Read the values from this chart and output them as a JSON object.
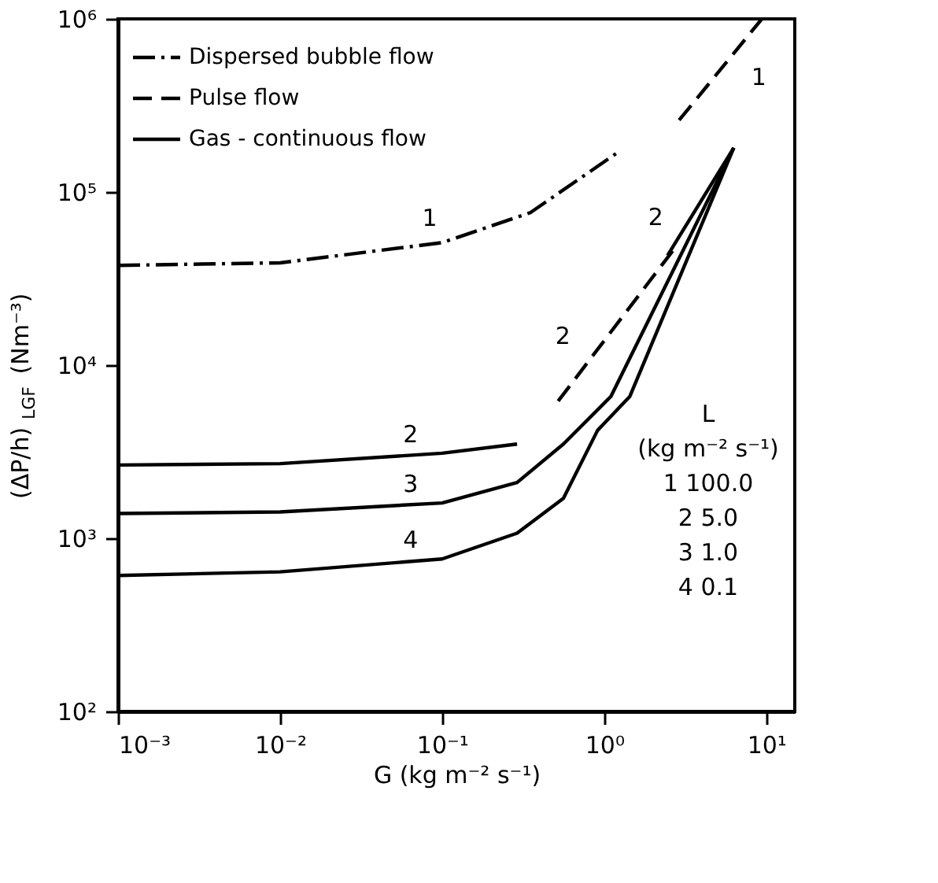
{
  "chart_data": {
    "type": "line",
    "xlabel": "G (kg m⁻² s⁻¹)",
    "ylabel": "(ΔP/h)$_{LGF}$ (Nm⁻³)",
    "log": "xy",
    "legend": "top left",
    "grid": false,
    "xlim": [
      0.001,
      15
    ],
    "ylim": [
      100,
      1000000
    ],
    "xticks": [
      {
        "value": 0.001,
        "label": "10⁻³"
      },
      {
        "value": 0.01,
        "label": "10⁻²"
      },
      {
        "value": 0.1,
        "label": "10⁻¹"
      },
      {
        "value": 1,
        "label": "10⁰"
      },
      {
        "value": 10,
        "label": "10¹"
      }
    ],
    "yticks": [
      {
        "value": 100,
        "label": "10²"
      },
      {
        "value": 1000,
        "label": "10³"
      },
      {
        "value": 10000,
        "label": "10⁴"
      },
      {
        "value": 100000,
        "label": "10⁵"
      },
      {
        "value": 1000000,
        "label": "10⁶"
      }
    ],
    "series": [
      {
        "name": "Dispersed bubble flow",
        "color": "#000000",
        "line_style": "dashdot",
        "x": [
          0.001,
          0.01,
          0.1,
          0.35,
          1.22
        ],
        "values": [
          37700,
          39000,
          51000,
          76000,
          170000
        ]
      },
      {
        "name": "Pulse flow",
        "color": "#000000",
        "line_style": "dashed",
        "x": [
          2.9,
          9.4
        ],
        "values": [
          260000,
          1000000
        ]
      },
      {
        "color": "#000000",
        "line_style": "dashed",
        "x": [
          0.52,
          2.8
        ],
        "values": [
          6200,
          49000
        ]
      },
      {
        "name": "Gas - continuous flow",
        "color": "#000000",
        "line_style": "solid",
        "x": [
          0.001,
          0.01,
          0.1,
          0.29
        ],
        "values": [
          2650,
          2700,
          3100,
          3500
        ]
      },
      {
        "color": "#000000",
        "line_style": "solid",
        "x": [
          2.46,
          6.3
        ],
        "values": [
          43000,
          180000
        ]
      },
      {
        "color": "#000000",
        "line_style": "solid",
        "x": [
          0.001,
          0.01,
          0.1,
          0.29,
          0.56,
          1.1,
          6.3
        ],
        "values": [
          1390,
          1420,
          1600,
          2100,
          3500,
          6600,
          180000
        ]
      },
      {
        "color": "#000000",
        "line_style": "solid",
        "x": [
          0.001,
          0.01,
          0.1,
          0.29,
          0.56,
          0.91,
          1.44,
          6.3
        ],
        "values": [
          610,
          640,
          760,
          1070,
          1700,
          4200,
          6600,
          180000
        ]
      }
    ],
    "annotations": [
      {
        "text": "1",
        "x": 0.15,
        "y": 55000
      },
      {
        "text": "1",
        "x": 5.5,
        "y": 500000
      },
      {
        "text": "2",
        "x": 0.95,
        "y": 13000
      },
      {
        "text": "2",
        "x": 3.4,
        "y": 66000
      },
      {
        "text": "2",
        "x": 0.1,
        "y": 3100
      },
      {
        "text": "3",
        "x": 0.1,
        "y": 1600
      },
      {
        "text": "4",
        "x": 0.1,
        "y": 760
      },
      "L",
      "(kg m⁻² s⁻¹)",
      "1     100.0",
      "2         5.0",
      "3         1.0",
      "4         0.1"
    ]
  }
}
